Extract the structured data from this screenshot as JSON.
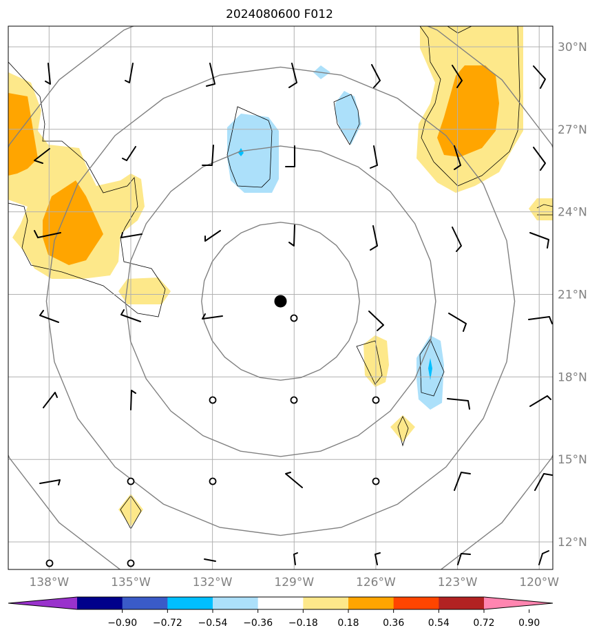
{
  "title": "2024080600 F012",
  "map": {
    "lon_min": -139.5,
    "lon_max": -119.5,
    "lat_min": 11.0,
    "lat_max": 30.75,
    "center": {
      "lon": -129.5,
      "lat": 20.75
    },
    "lon_ticks": [
      {
        "value": -138,
        "label": "138°W"
      },
      {
        "value": -135,
        "label": "135°W"
      },
      {
        "value": -132,
        "label": "132°W"
      },
      {
        "value": -129,
        "label": "129°W"
      },
      {
        "value": -126,
        "label": "126°W"
      },
      {
        "value": -123,
        "label": "123°W"
      },
      {
        "value": -120,
        "label": "120°W"
      }
    ],
    "lat_ticks": [
      {
        "value": 30,
        "label": "30°N"
      },
      {
        "value": 27,
        "label": "27°N"
      },
      {
        "value": 24,
        "label": "24°N"
      },
      {
        "value": 21,
        "label": "21°N"
      },
      {
        "value": 18,
        "label": "18°N"
      },
      {
        "value": 15,
        "label": "15°N"
      },
      {
        "value": 12,
        "label": "12°N"
      }
    ],
    "range_rings_deg": [
      2.9,
      5.7,
      8.6,
      11.5
    ],
    "colors": {
      "grid": "#b0b0b0",
      "ring": "#808080",
      "tick_label": "#808080",
      "barb": "#000000"
    }
  },
  "colorbar": {
    "levels": [
      "−0.90",
      "−0.72",
      "−0.54",
      "−0.36",
      "−0.18",
      "0.18",
      "0.36",
      "0.54",
      "0.72",
      "0.90"
    ],
    "colors": [
      "#9932cc",
      "#00008b",
      "#3a5bc8",
      "#00bfff",
      "#ace0fa",
      "#ffffff",
      "#fde88a",
      "#ffa500",
      "#ff4500",
      "#b22222",
      "#ff85b0"
    ]
  },
  "shading": {
    "light_yellow": "#fde88a",
    "orange": "#ffa500",
    "light_blue": "#ace0fa",
    "blue": "#00bfff"
  }
}
